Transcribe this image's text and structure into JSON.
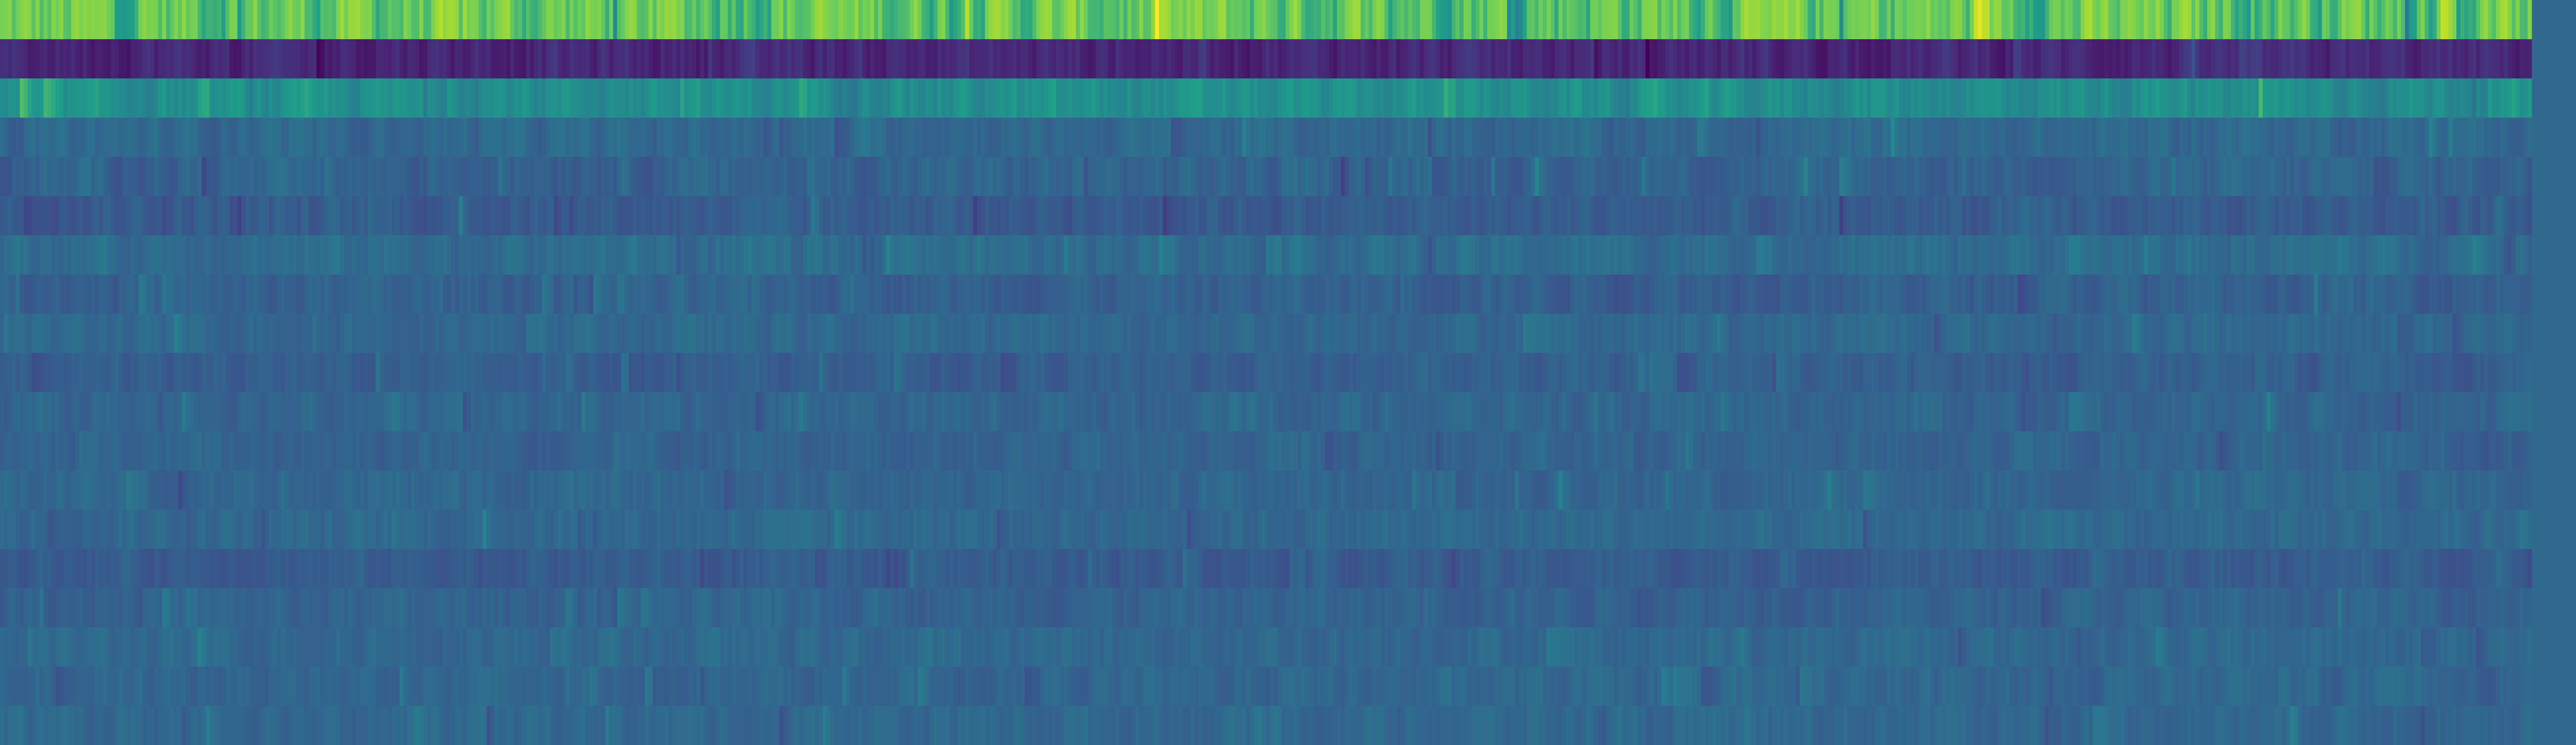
{
  "chart_data": {
    "type": "heatmap",
    "colormap": "viridis",
    "colormap_stops": [
      "#440154",
      "#482777",
      "#3f4a8a",
      "#31678e",
      "#26838f",
      "#1f9d8a",
      "#6cce5a",
      "#b6de2b",
      "#fee825"
    ],
    "background_color": "#31688e",
    "n_rows": 19,
    "n_columns": 640,
    "value_range": [
      0,
      1
    ],
    "title": "",
    "xlabel": "",
    "ylabel": "",
    "colorbar": false,
    "row_profiles": [
      {
        "row": 0,
        "mean": 0.74,
        "spread": 0.18
      },
      {
        "row": 1,
        "mean": 0.13,
        "spread": 0.1
      },
      {
        "row": 2,
        "mean": 0.55,
        "spread": 0.12
      },
      {
        "row": 3,
        "mean": 0.38,
        "spread": 0.08
      },
      {
        "row": 4,
        "mean": 0.36,
        "spread": 0.09
      },
      {
        "row": 5,
        "mean": 0.33,
        "spread": 0.09
      },
      {
        "row": 6,
        "mean": 0.4,
        "spread": 0.08
      },
      {
        "row": 7,
        "mean": 0.35,
        "spread": 0.08
      },
      {
        "row": 8,
        "mean": 0.38,
        "spread": 0.07
      },
      {
        "row": 9,
        "mean": 0.34,
        "spread": 0.07
      },
      {
        "row": 10,
        "mean": 0.37,
        "spread": 0.07
      },
      {
        "row": 11,
        "mean": 0.36,
        "spread": 0.07
      },
      {
        "row": 12,
        "mean": 0.37,
        "spread": 0.07
      },
      {
        "row": 13,
        "mean": 0.38,
        "spread": 0.07
      },
      {
        "row": 14,
        "mean": 0.33,
        "spread": 0.07
      },
      {
        "row": 15,
        "mean": 0.36,
        "spread": 0.07
      },
      {
        "row": 16,
        "mean": 0.38,
        "spread": 0.07
      },
      {
        "row": 17,
        "mean": 0.37,
        "spread": 0.07
      },
      {
        "row": 18,
        "mean": 0.38,
        "spread": 0.07
      }
    ]
  }
}
